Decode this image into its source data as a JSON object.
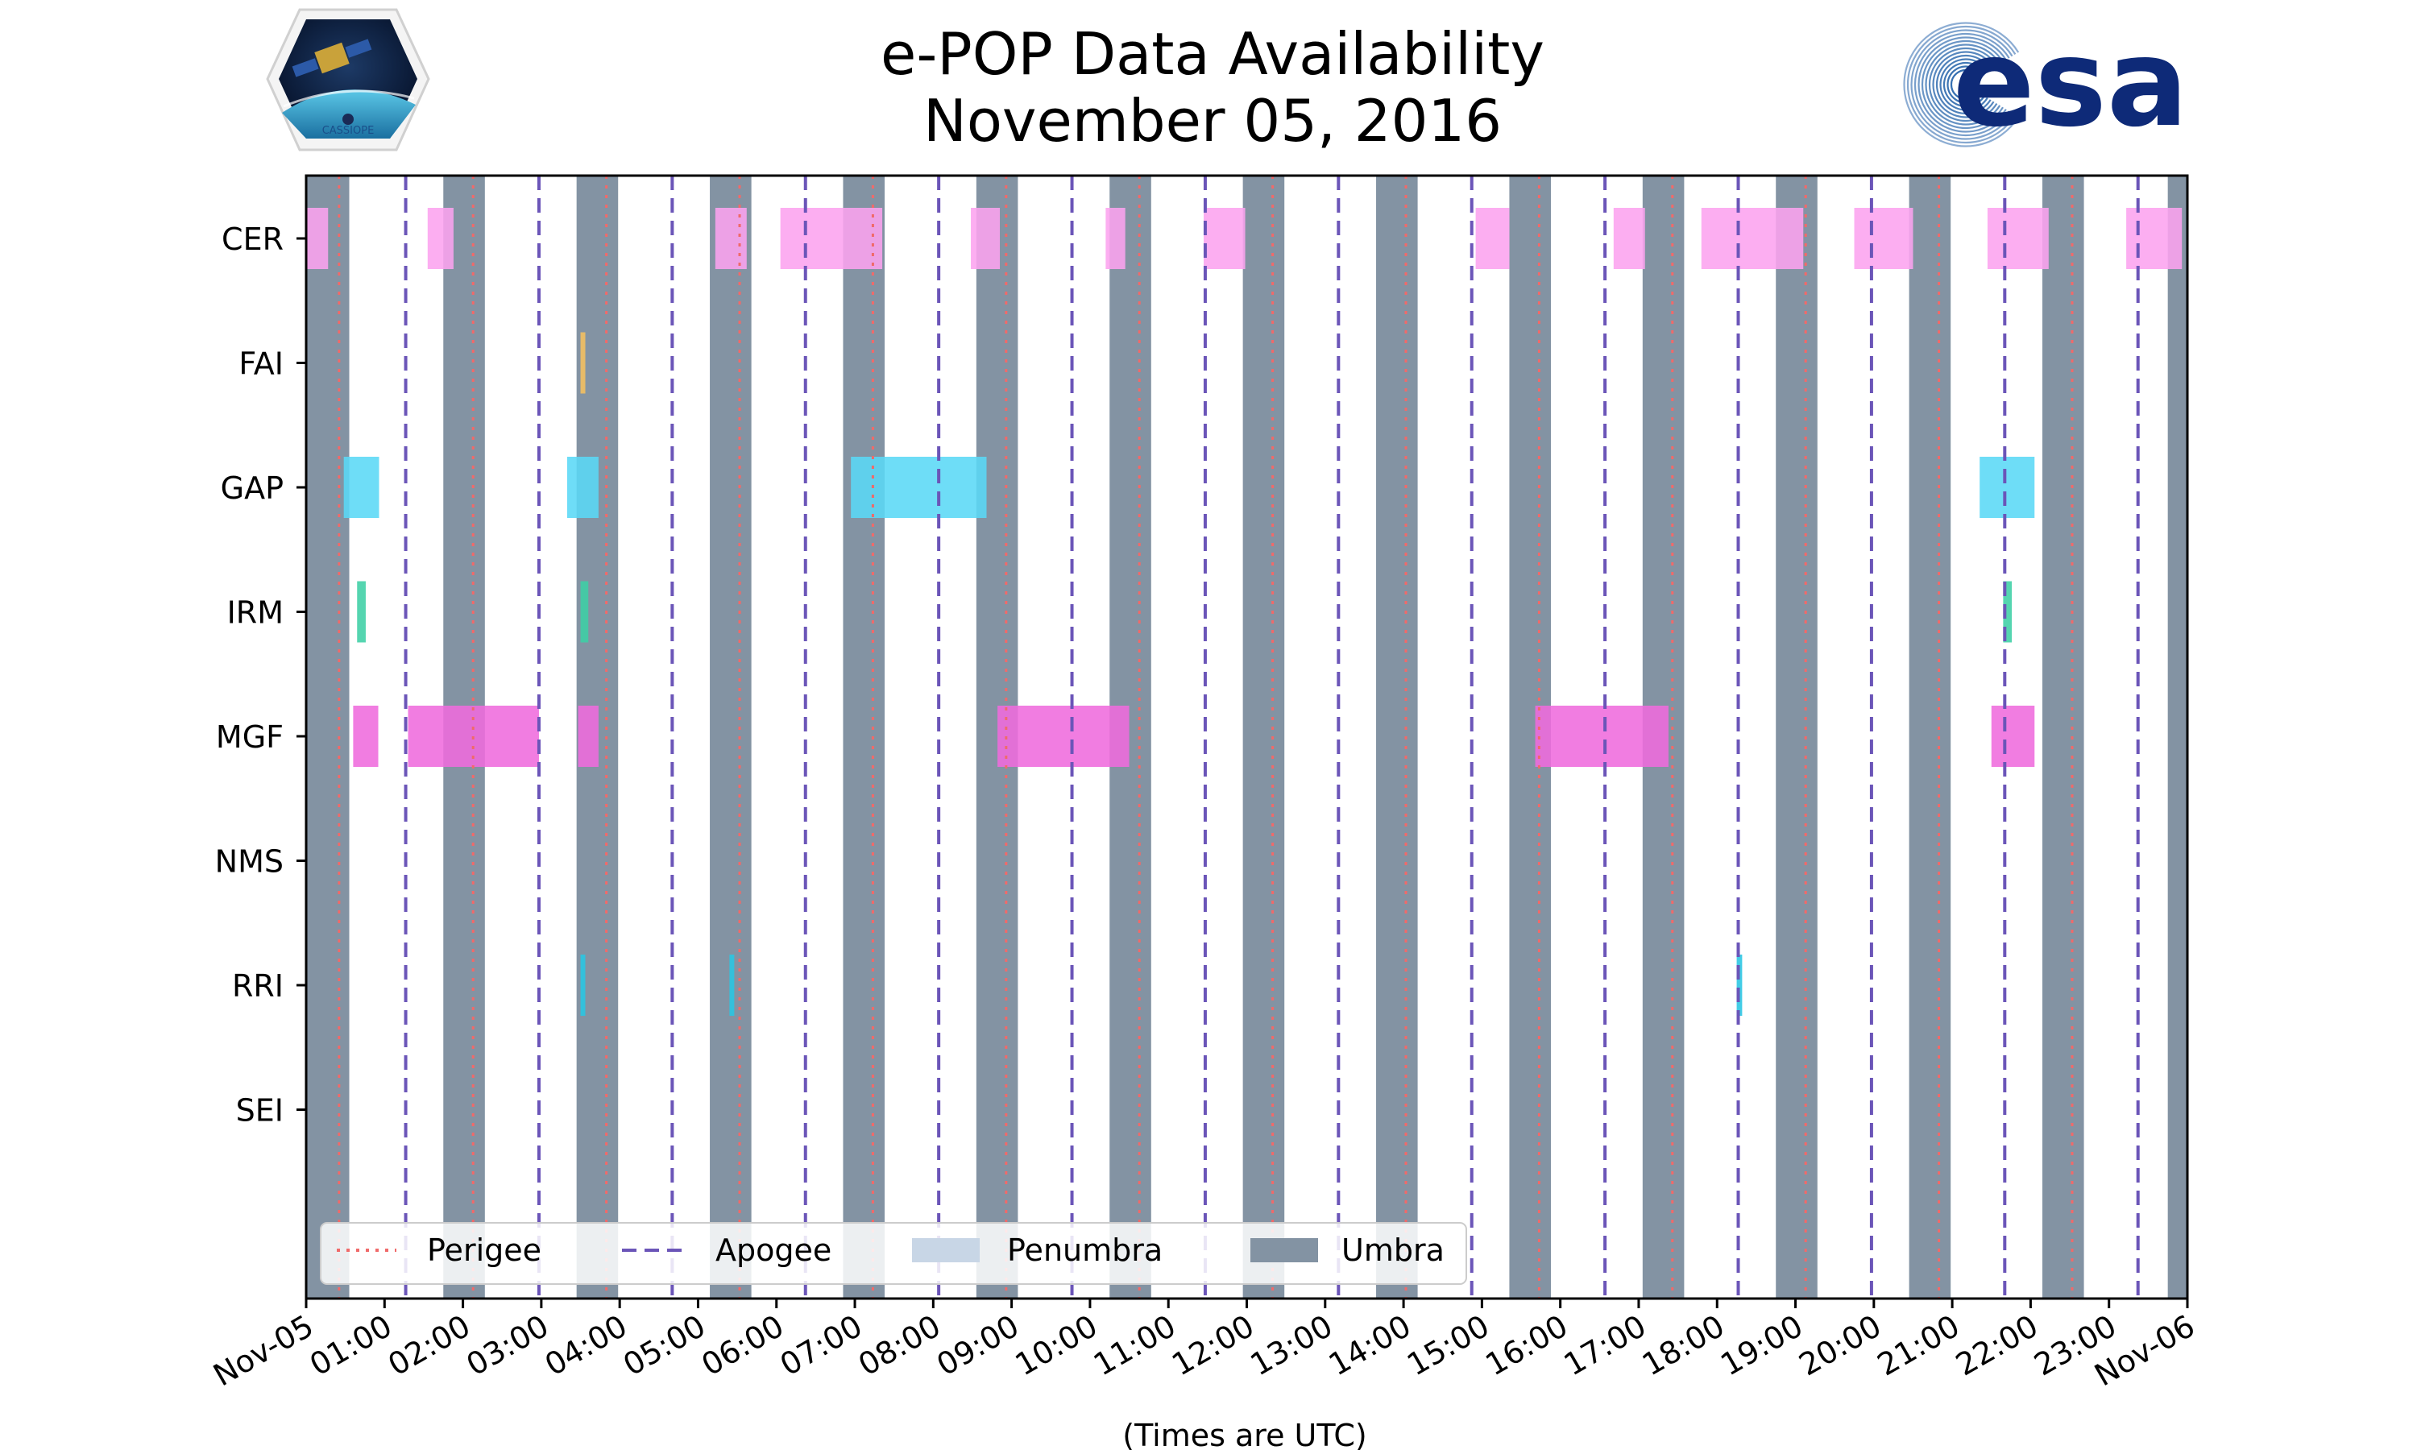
{
  "chart_data": {
    "type": "timeline",
    "title": "e-POP Data Availability",
    "subtitle": "November 05, 2016",
    "xlabel": "(Times are UTC)",
    "x_range_hours": [
      0,
      24
    ],
    "x_tick_labels": [
      "Nov-05",
      "01:00",
      "02:00",
      "03:00",
      "04:00",
      "05:00",
      "06:00",
      "07:00",
      "08:00",
      "09:00",
      "10:00",
      "11:00",
      "12:00",
      "13:00",
      "14:00",
      "15:00",
      "16:00",
      "17:00",
      "18:00",
      "19:00",
      "20:00",
      "21:00",
      "22:00",
      "23:00",
      "Nov-06"
    ],
    "instruments": [
      "CER",
      "FAI",
      "GAP",
      "IRM",
      "MGF",
      "NMS",
      "RRI",
      "SEI"
    ],
    "colors": {
      "CER": "#fca3ef",
      "FAI": "#f5c060",
      "GAP": "#5ad8f6",
      "IRM": "#3ecfa5",
      "MGF": "#ef6bdd",
      "NMS": "#999999",
      "RRI": "#29c6e3",
      "SEI": "#999999",
      "umbra": "#8393a3",
      "penumbra": "#c8d6e6",
      "perigee": "#f06a6a",
      "apogee": "#6b55b8"
    },
    "umbra_hours": [
      [
        0.0,
        0.55
      ],
      [
        1.75,
        2.28
      ],
      [
        3.45,
        3.98
      ],
      [
        5.15,
        5.68
      ],
      [
        6.85,
        7.38
      ],
      [
        8.55,
        9.08
      ],
      [
        10.25,
        10.78
      ],
      [
        11.95,
        12.48
      ],
      [
        13.65,
        14.18
      ],
      [
        15.35,
        15.88
      ],
      [
        17.05,
        17.58
      ],
      [
        18.75,
        19.28
      ],
      [
        20.45,
        20.98
      ],
      [
        22.15,
        22.68
      ],
      [
        23.75,
        24.0
      ]
    ],
    "perigee_hours": [
      0.42,
      2.13,
      3.83,
      5.53,
      7.23,
      8.93,
      10.63,
      12.33,
      14.03,
      15.73,
      17.43,
      19.13,
      20.83,
      22.53
    ],
    "apogee_hours": [
      1.27,
      2.97,
      4.67,
      6.37,
      8.07,
      9.77,
      11.47,
      13.17,
      14.87,
      16.57,
      18.27,
      19.97,
      21.67,
      23.37
    ],
    "availability": {
      "CER": [
        [
          0.0,
          0.28
        ],
        [
          1.55,
          1.88
        ],
        [
          5.22,
          5.62
        ],
        [
          6.05,
          7.35
        ],
        [
          8.48,
          8.85
        ],
        [
          10.2,
          10.45
        ],
        [
          11.45,
          11.98
        ],
        [
          14.92,
          15.35
        ],
        [
          16.68,
          17.08
        ],
        [
          17.8,
          19.1
        ],
        [
          19.75,
          20.5
        ],
        [
          21.45,
          22.23
        ],
        [
          23.22,
          23.93
        ]
      ],
      "FAI": [
        [
          3.5,
          3.55
        ]
      ],
      "GAP": [
        [
          0.48,
          0.93
        ],
        [
          3.33,
          3.73
        ],
        [
          6.95,
          8.68
        ],
        [
          21.35,
          22.05
        ]
      ],
      "IRM": [
        [
          0.65,
          0.76
        ]
      ],
      "IRM_2": [
        [
          3.5,
          3.6
        ],
        [
          21.65,
          21.76
        ]
      ],
      "MGF": [
        [
          0.6,
          0.92
        ],
        [
          1.3,
          2.97
        ],
        [
          3.47,
          3.73
        ],
        [
          8.82,
          10.5
        ],
        [
          15.68,
          17.38
        ],
        [
          21.5,
          22.05
        ]
      ],
      "NMS": [],
      "RRI": [
        [
          3.5,
          3.55
        ],
        [
          5.4,
          5.46
        ],
        [
          18.25,
          18.32
        ]
      ],
      "SEI": []
    },
    "legend": [
      "Perigee",
      "Apogee",
      "Penumbra",
      "Umbra"
    ],
    "legend_position": "lower-left"
  },
  "logos": {
    "mission_badge": "CASSIOPE",
    "agency": "esa"
  }
}
